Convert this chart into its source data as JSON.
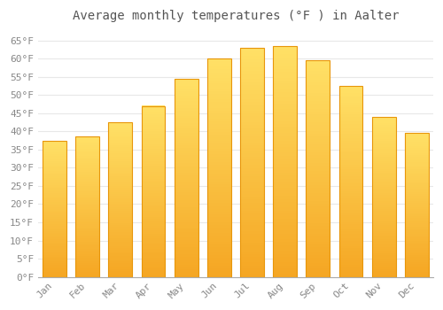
{
  "title": "Average monthly temperatures (°F ) in Aalter",
  "months": [
    "Jan",
    "Feb",
    "Mar",
    "Apr",
    "May",
    "Jun",
    "Jul",
    "Aug",
    "Sep",
    "Oct",
    "Nov",
    "Dec"
  ],
  "values": [
    37.5,
    38.5,
    42.5,
    47.0,
    54.5,
    60.0,
    63.0,
    63.5,
    59.5,
    52.5,
    44.0,
    39.5
  ],
  "ylim": [
    0,
    68
  ],
  "yticks": [
    0,
    5,
    10,
    15,
    20,
    25,
    30,
    35,
    40,
    45,
    50,
    55,
    60,
    65
  ],
  "bar_color_bottom": "#F5A623",
  "bar_color_top": "#FFE066",
  "bar_edge_color": "#E8960A",
  "background_color": "#ffffff",
  "grid_color": "#e8e8e8",
  "title_fontsize": 10,
  "tick_fontsize": 8,
  "font_family": "monospace"
}
